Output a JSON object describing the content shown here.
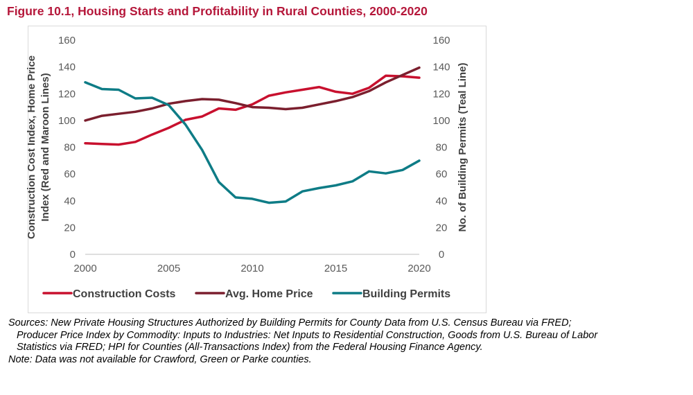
{
  "figure_title": "Figure 10.1, Housing Starts and Profitability in Rural Counties, 2000-2020",
  "notes": {
    "sources_lines": [
      "Sources: New Private Housing Structures Authorized by Building Permits for County Data from U.S. Census Bureau via FRED;",
      "Producer Price Index by Commodity: Inputs to Industries: Net Inputs to Residential Construction, Goods from U.S. Bureau of Labor",
      "Statistics via FRED; HPI for Counties (All-Transactions Index) from the Federal Housing Finance Agency."
    ],
    "note_line": "Note: Data was not available for Crawford, Green or Parke counties."
  },
  "chart_data": {
    "type": "line",
    "title": "",
    "x": [
      2000,
      2001,
      2002,
      2003,
      2004,
      2005,
      2006,
      2007,
      2008,
      2009,
      2010,
      2011,
      2012,
      2013,
      2014,
      2015,
      2016,
      2017,
      2018,
      2019,
      2020
    ],
    "x_ticks": [
      2000,
      2005,
      2010,
      2015,
      2020
    ],
    "xlim": [
      2000,
      2020
    ],
    "y_left": {
      "label_lines": [
        "Construction Cost Index, Home Price",
        "Index (Red and Maroon Lines)"
      ],
      "ylim": [
        0,
        160
      ],
      "ticks": [
        0,
        20,
        40,
        60,
        80,
        100,
        120,
        140,
        160
      ]
    },
    "y_right": {
      "label": "No. of Building Permits (Teal Line)",
      "ylim": [
        0,
        160
      ],
      "ticks": [
        0,
        20,
        40,
        60,
        80,
        100,
        120,
        140,
        160
      ]
    },
    "grid": false,
    "legend_position": "bottom",
    "series": [
      {
        "name": "Construction Costs",
        "color": "#c8102e",
        "axis": "left",
        "values": [
          83,
          82.5,
          82,
          84,
          89.5,
          94.5,
          100.5,
          103,
          109,
          108,
          112,
          118.5,
          121,
          123,
          125,
          121.5,
          120,
          124.5,
          133.5,
          133,
          132
        ]
      },
      {
        "name": "Avg. Home Price",
        "color": "#7b1f2e",
        "axis": "left",
        "values": [
          100,
          103.5,
          105,
          106.5,
          109,
          112.5,
          114.5,
          116,
          115.5,
          113,
          110,
          109.5,
          108.5,
          109.5,
          112,
          114.5,
          117.5,
          122,
          128.5,
          134,
          139.5
        ]
      },
      {
        "name": "Building Permits",
        "color": "#0e7c86",
        "axis": "right",
        "values": [
          128.5,
          123.5,
          123,
          116.5,
          117,
          111.5,
          97,
          78,
          54,
          42.5,
          41.5,
          38.5,
          39.5,
          47,
          49.5,
          51.5,
          54.5,
          62,
          60.5,
          63,
          70
        ]
      }
    ]
  }
}
